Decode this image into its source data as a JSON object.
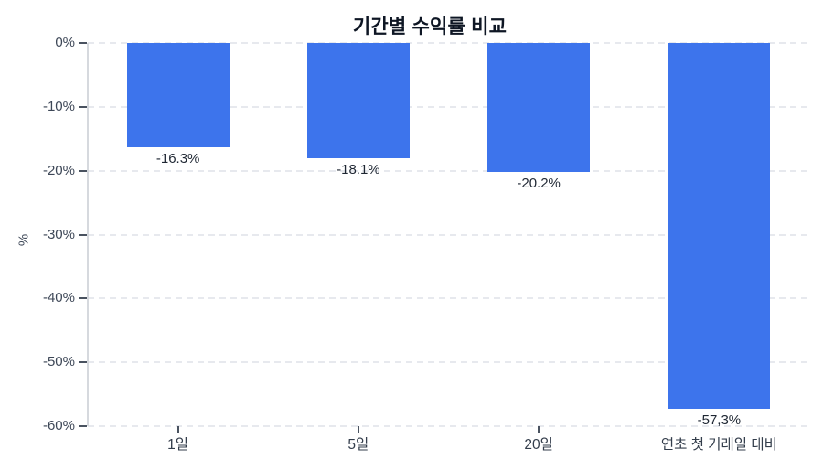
{
  "chart_data": {
    "type": "bar",
    "title": "기간별 수익률 비교",
    "ylabel": "%",
    "xlabel": "",
    "categories": [
      "1일",
      "5일",
      "20일",
      "연초 첫 거래일 대비"
    ],
    "values": [
      -16.3,
      -18.1,
      -20.2,
      -57.3
    ],
    "value_labels": [
      "-16.3%",
      "-18.1%",
      "-20.2%",
      "-57,3%"
    ],
    "ylim": [
      -60,
      0
    ],
    "ytick_values": [
      0,
      -10,
      -20,
      -30,
      -40,
      -50,
      -60
    ],
    "ytick_labels": [
      "0%",
      "-10%",
      "-20%",
      "-30%",
      "-40%",
      "-50%",
      "-60%"
    ],
    "grid": true,
    "gridline_style": "dashed",
    "legend": "none",
    "bar_color": "#3D74EC"
  }
}
